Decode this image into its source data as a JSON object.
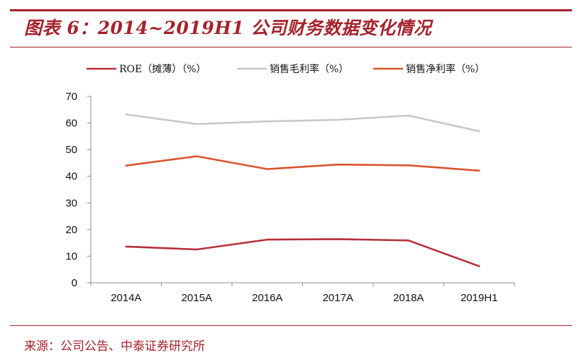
{
  "title": "图表 6：2014~2019H1 公司财务数据变化情况",
  "source": "来源：公司公告、中泰证券研究所",
  "colors": {
    "accent": "#a5222a",
    "axis": "#8c8c8c"
  },
  "chart_data": {
    "type": "line",
    "categories": [
      "2014A",
      "2015A",
      "2016A",
      "2017A",
      "2018A",
      "2019H1"
    ],
    "ylim": [
      0,
      70
    ],
    "yticks": [
      0,
      10,
      20,
      30,
      40,
      50,
      60,
      70
    ],
    "grid": false,
    "legend_position": "top",
    "series": [
      {
        "name": "ROE（摊薄）（%）",
        "color": "#b5303a",
        "values": [
          13.6,
          12.5,
          16.2,
          16.4,
          15.9,
          6.2
        ]
      },
      {
        "name": "销售毛利率（%）",
        "color": "#c8c8c8",
        "values": [
          63.2,
          59.6,
          60.6,
          61.2,
          62.8,
          56.9
        ]
      },
      {
        "name": "销售净利率（%）",
        "color": "#d9542e",
        "values": [
          44.0,
          47.5,
          42.7,
          44.4,
          44.1,
          42.1
        ]
      }
    ]
  }
}
